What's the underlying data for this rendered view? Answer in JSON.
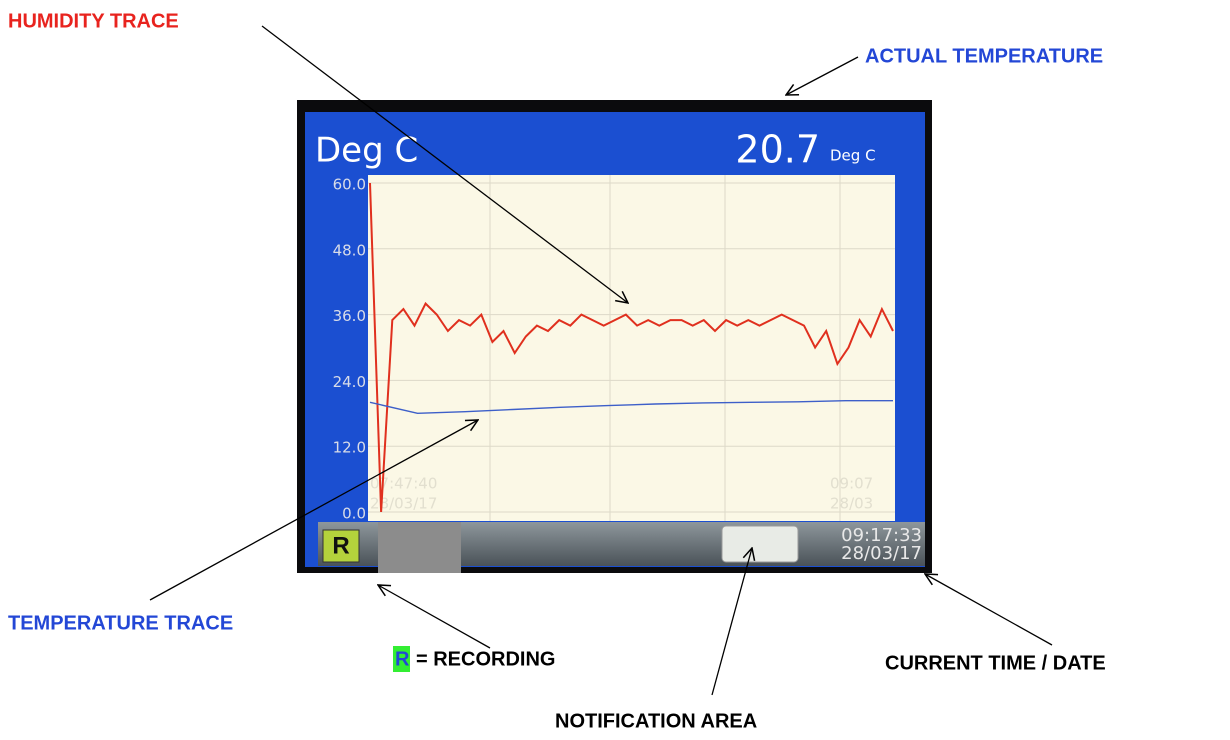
{
  "annotations": {
    "humidity_trace": "HUMIDITY TRACE",
    "actual_temperature": "ACTUAL TEMPERATURE",
    "temperature_trace": "TEMPERATURE TRACE",
    "recording_key": "R",
    "recording_text": "= RECORDING",
    "notification_area": "NOTIFICATION AREA",
    "current_time_date": "CURRENT TIME / DATE"
  },
  "screen": {
    "unit_title": "Deg C",
    "reading": "20.7",
    "reading_unit": "Deg C",
    "recording_icon": "R",
    "time": "09:17:33",
    "date": "28/03/17",
    "chart": {
      "type": "line",
      "ylim": [
        0,
        60
      ],
      "yticks": [
        {
          "value": 0,
          "label": "0.0"
        },
        {
          "value": 12,
          "label": "12.0"
        },
        {
          "value": 24,
          "label": "24.0"
        },
        {
          "value": 36,
          "label": "36.0"
        },
        {
          "value": 48,
          "label": "48.0"
        },
        {
          "value": 60,
          "label": "60.0"
        }
      ],
      "grid": true,
      "x_labels": [
        {
          "time": "07:47:40",
          "date": "28/03/17"
        },
        {
          "time": "09:07",
          "date": "28/03"
        }
      ],
      "series": [
        {
          "color": "#e0301e",
          "values": [
            60,
            0,
            35,
            37,
            34,
            38,
            36,
            33,
            35,
            34,
            36,
            31,
            33,
            29,
            32,
            34,
            33,
            35,
            34,
            36,
            35,
            34,
            35,
            36,
            34,
            35,
            34,
            35,
            35,
            34,
            35,
            33,
            35,
            34,
            35,
            34,
            35,
            36,
            35,
            34,
            30,
            33,
            27,
            30,
            35,
            32,
            37,
            33
          ]
        },
        {
          "color": "#3d5fc9",
          "values": [
            20.0,
            18.0,
            18.3,
            18.7,
            19.1,
            19.4,
            19.7,
            19.9,
            20.0,
            20.1,
            20.3,
            20.3
          ]
        }
      ]
    }
  }
}
